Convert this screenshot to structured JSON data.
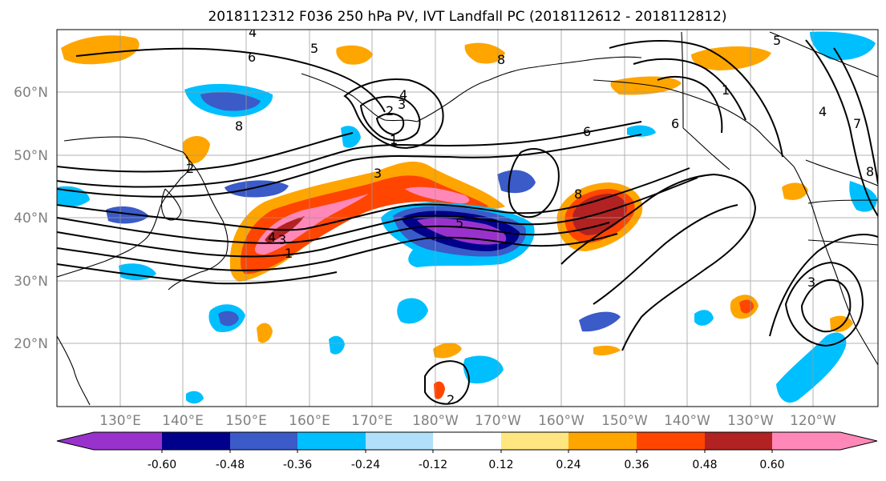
{
  "title": "2018112312 F036 250 hPa PV, IVT Landfall PC (2018112612 - 2018112812)",
  "lat_labels": [
    "60°N",
    "50°N",
    "40°N",
    "30°N",
    "20°N"
  ],
  "lon_labels": [
    "130°E",
    "140°E",
    "150°E",
    "160°E",
    "170°E",
    "180°W",
    "170°W",
    "160°W",
    "150°W",
    "140°W",
    "130°W",
    "120°W"
  ],
  "colorbar": {
    "colors": [
      "#9932cc",
      "#00008b",
      "#3a5bc8",
      "#00bfff",
      "#b0e0fa",
      "#ffffff",
      "#ffffff",
      "#ffe680",
      "#ffa500",
      "#ff4500",
      "#b22222",
      "#ff88b8"
    ],
    "tick_labels": [
      "-0.60",
      "-0.48",
      "-0.36",
      "-0.24",
      "-0.12",
      "0.12",
      "0.24",
      "0.36",
      "0.48",
      "0.60"
    ]
  },
  "contour_labels": [
    "4",
    "5",
    "6",
    "4",
    "3",
    "2",
    "1",
    "3",
    "6",
    "6",
    "1",
    "5",
    "8",
    "8",
    "4",
    "3",
    "1",
    "5",
    "8",
    "3",
    "2",
    "2",
    "4",
    "7",
    "8"
  ]
}
